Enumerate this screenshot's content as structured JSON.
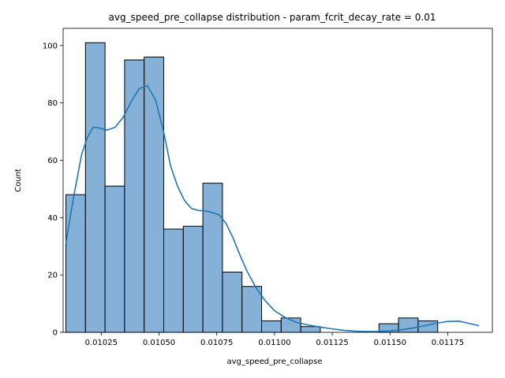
{
  "chart_data": {
    "type": "bar",
    "title": "avg_speed_pre_collapse distribution - param_fcrit_decay_rate = 0.01",
    "xlabel": "avg_speed_pre_collapse",
    "ylabel": "Count",
    "xlim": [
      0.010085,
      0.011943
    ],
    "ylim": [
      0,
      106
    ],
    "x_ticks": [
      0.01025,
      0.0105,
      0.01075,
      0.011,
      0.01125,
      0.0115,
      0.01175
    ],
    "x_tick_labels": [
      "0.01025",
      "0.01050",
      "0.01075",
      "0.01100",
      "0.01125",
      "0.01150",
      "0.01175"
    ],
    "y_ticks": [
      0,
      20,
      40,
      60,
      80,
      100
    ],
    "y_tick_labels": [
      "0",
      "20",
      "40",
      "60",
      "80",
      "100"
    ],
    "bin_start": 0.010097,
    "bin_width": 8.47e-05,
    "counts": [
      48,
      101,
      51,
      95,
      96,
      36,
      37,
      52,
      21,
      16,
      4,
      5,
      2,
      0,
      0,
      0,
      3,
      5,
      4
    ],
    "kde": {
      "x": [
        0.010097,
        0.01013,
        0.010165,
        0.01019,
        0.010215,
        0.01024,
        0.010275,
        0.01031,
        0.010345,
        0.01038,
        0.010415,
        0.01045,
        0.010485,
        0.01052,
        0.01055,
        0.01058,
        0.01061,
        0.01064,
        0.01067,
        0.0107,
        0.01073,
        0.01076,
        0.01079,
        0.01082,
        0.01085,
        0.01088,
        0.01092,
        0.01096,
        0.011,
        0.01105,
        0.0111,
        0.01115,
        0.0112,
        0.01125,
        0.0113,
        0.01135,
        0.0114,
        0.01145,
        0.0115,
        0.01155,
        0.0116,
        0.01165,
        0.0117,
        0.01175,
        0.0118,
        0.011885
      ],
      "y": [
        31,
        47,
        62,
        68,
        71.5,
        71.3,
        70.5,
        71.5,
        75,
        80.5,
        85,
        86,
        81,
        70,
        58,
        51,
        46,
        43.2,
        42.5,
        42.3,
        41.8,
        41,
        38,
        33,
        27,
        21.5,
        15.5,
        11,
        7.5,
        5,
        3.3,
        2.5,
        1.8,
        1.2,
        0.7,
        0.4,
        0.3,
        0.3,
        0.5,
        0.9,
        1.5,
        2.3,
        3.2,
        3.8,
        3.9,
        2.3
      ]
    }
  }
}
